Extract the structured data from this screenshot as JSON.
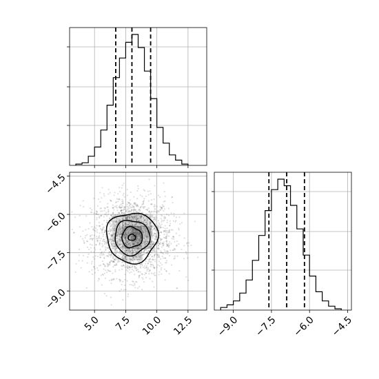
{
  "chart_data": [
    {
      "type": "histogram",
      "panel": "x-marginal",
      "xlim": [
        3.0,
        14.0
      ],
      "bins_x": [
        3.5,
        4.0,
        4.5,
        5.0,
        5.5,
        6.0,
        6.5,
        7.0,
        7.5,
        8.0,
        8.5,
        9.0,
        9.5,
        10.0,
        10.5,
        11.0,
        11.5,
        12.0,
        12.5
      ],
      "counts": [
        1,
        2,
        7,
        14,
        27,
        46,
        67,
        82,
        94,
        100,
        90,
        72,
        51,
        29,
        17,
        8,
        4,
        1
      ],
      "quantiles": [
        6.7,
        8.0,
        9.5
      ],
      "grid": true
    },
    {
      "type": "histogram",
      "panel": "y-marginal",
      "xlim": [
        -9.75,
        -4.35
      ],
      "bins_x": [
        -9.5,
        -9.25,
        -9.0,
        -8.75,
        -8.5,
        -8.25,
        -8.0,
        -7.75,
        -7.5,
        -7.25,
        -7.0,
        -6.75,
        -6.5,
        -6.25,
        -6.0,
        -5.75,
        -5.5,
        -5.25,
        -5.0,
        -4.75
      ],
      "counts": [
        2,
        4,
        7,
        13,
        23,
        38,
        57,
        76,
        92,
        100,
        95,
        80,
        62,
        42,
        26,
        14,
        7,
        3,
        1
      ],
      "quantiles": [
        -7.6,
        -6.9,
        -6.2
      ],
      "grid": true
    },
    {
      "type": "scatter",
      "panel": "joint",
      "xlim": [
        3.0,
        14.0
      ],
      "ylim": [
        -9.75,
        -4.35
      ],
      "center": [
        8.0,
        -6.9
      ],
      "x_ticks": [
        "5.0",
        "7.5",
        "10.0",
        "12.5"
      ],
      "y_ticks": [
        "−4.5",
        "−6.0",
        "−7.5",
        "−9.0"
      ],
      "density_levels": [
        "0.5",
        "1",
        "1.5",
        "2"
      ],
      "grid": true
    }
  ],
  "colors": {
    "line": "#000000",
    "grid": "#b0b0b0",
    "points": "#000000"
  }
}
